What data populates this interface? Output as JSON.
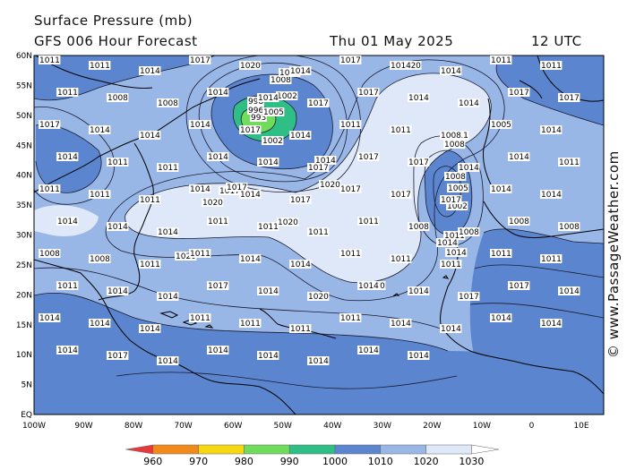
{
  "header": {
    "title": "Surface Pressure (mb)",
    "subtitle": "GFS 006 Hour Forecast",
    "datetime": "Thu 01 May 2025",
    "hour": "12 UTC"
  },
  "credit": "© www.PassageWeather.com",
  "axes": {
    "lat_labels": [
      "60N",
      "55N",
      "50N",
      "45N",
      "40N",
      "35N",
      "30N",
      "25N",
      "20N",
      "15N",
      "10N",
      "5N",
      "EQ"
    ],
    "lon_labels": [
      "100W",
      "90W",
      "80W",
      "70W",
      "60W",
      "50W",
      "40W",
      "30W",
      "20W",
      "10W",
      "0",
      "10E"
    ]
  },
  "colorbar": {
    "labels": [
      "960",
      "970",
      "980",
      "990",
      "1000",
      "1010",
      "1020",
      "1030"
    ],
    "colors": [
      "#e8383c",
      "#f18a1b",
      "#f5d80f",
      "#6fdc5c",
      "#2fbf86",
      "#5b86cf",
      "#98b6e6",
      "#dfe8f8"
    ]
  },
  "isobar_labels": {
    "low_center_nw": [
      "998",
      "996",
      "993",
      "1002",
      "1005",
      "1008",
      "1011",
      "1002",
      "1014"
    ],
    "low_center_e": [
      "1011",
      "1008",
      "1008",
      "1005",
      "1002",
      "1011",
      "1014",
      "1014"
    ],
    "high_center": [
      "1020",
      "1020",
      "1017",
      "1017",
      "1020",
      "1020",
      "1020",
      "1020"
    ],
    "general": [
      "1011",
      "1011",
      "1014",
      "1017",
      "1020",
      "1014",
      "1017",
      "1014",
      "1014",
      "1011",
      "1011",
      "1011",
      "1008",
      "1008",
      "1014",
      "1014",
      "1017",
      "1017",
      "1014",
      "1014",
      "1017",
      "1017",
      "1017",
      "1014",
      "1014",
      "1014",
      "1017",
      "1014",
      "1011",
      "1011",
      "1008",
      "1005",
      "1014",
      "1014",
      "1011",
      "1011",
      "1014",
      "1014",
      "1017",
      "1017",
      "1017",
      "1014",
      "1014",
      "1011",
      "1011",
      "1011",
      "1011",
      "1014",
      "1014",
      "1017",
      "1017",
      "1017",
      "1017",
      "1014",
      "1014",
      "1014",
      "1014",
      "1014",
      "1011",
      "1011",
      "1011",
      "1011",
      "1008",
      "1008",
      "1008",
      "1008",
      "1008",
      "1008",
      "1011",
      "1011",
      "1014",
      "1014",
      "1011",
      "1011",
      "1011",
      "1011",
      "1011",
      "1011",
      "1014",
      "1014",
      "1017",
      "1014",
      "1020",
      "1014",
      "1014",
      "1017",
      "1017",
      "1014",
      "1014",
      "1014",
      "1014",
      "1011",
      "1011",
      "1011",
      "1011",
      "1014",
      "1014",
      "1014",
      "1014",
      "1014",
      "1017",
      "1014",
      "1014",
      "1014",
      "1014",
      "1014",
      "1014"
    ]
  }
}
